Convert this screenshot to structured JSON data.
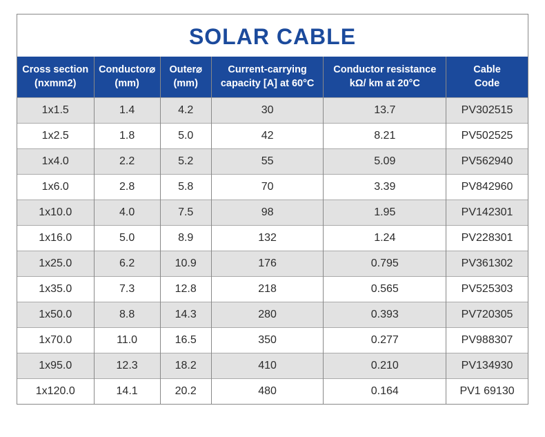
{
  "title": "SOLAR CABLE",
  "colors": {
    "title_color": "#1b4a9c",
    "header_bg": "#1b4a9c",
    "header_text": "#ffffff",
    "row_odd_bg": "#e2e2e2",
    "row_even_bg": "#ffffff",
    "border_color": "#888888",
    "cell_text": "#2b2b2b"
  },
  "columns": [
    {
      "label_line1": "Cross section",
      "label_line2": "(nxmm2)",
      "width": "15%"
    },
    {
      "label_line1": "Conductor⌀",
      "label_line2": "(mm)",
      "width": "13%"
    },
    {
      "label_line1": "Outer⌀",
      "label_line2": "(mm)",
      "width": "10%"
    },
    {
      "label_line1": "Current-carrying",
      "label_line2": "capacity [A] at 60°C",
      "width": "22%"
    },
    {
      "label_line1": "Conductor resistance",
      "label_line2": "kΩ/ km at 20°C",
      "width": "24%"
    },
    {
      "label_line1": "Cable",
      "label_line2": "Code",
      "width": "16%"
    }
  ],
  "rows": [
    [
      "1x1.5",
      "1.4",
      "4.2",
      "30",
      "13.7",
      "PV302515"
    ],
    [
      "1x2.5",
      "1.8",
      "5.0",
      "42",
      "8.21",
      "PV502525"
    ],
    [
      "1x4.0",
      "2.2",
      "5.2",
      "55",
      "5.09",
      "PV562940"
    ],
    [
      "1x6.0",
      "2.8",
      "5.8",
      "70",
      "3.39",
      "PV842960"
    ],
    [
      "1x10.0",
      "4.0",
      "7.5",
      "98",
      "1.95",
      "PV142301"
    ],
    [
      "1x16.0",
      "5.0",
      "8.9",
      "132",
      "1.24",
      "PV228301"
    ],
    [
      "1x25.0",
      "6.2",
      "10.9",
      "176",
      "0.795",
      "PV361302"
    ],
    [
      "1x35.0",
      "7.3",
      "12.8",
      "218",
      "0.565",
      "PV525303"
    ],
    [
      "1x50.0",
      "8.8",
      "14.3",
      "280",
      "0.393",
      "PV720305"
    ],
    [
      "1x70.0",
      "11.0",
      "16.5",
      "350",
      "0.277",
      "PV988307"
    ],
    [
      "1x95.0",
      "12.3",
      "18.2",
      "410",
      "0.210",
      "PV134930"
    ],
    [
      "1x120.0",
      "14.1",
      "20.2",
      "480",
      "0.164",
      "PV1 69130"
    ]
  ]
}
